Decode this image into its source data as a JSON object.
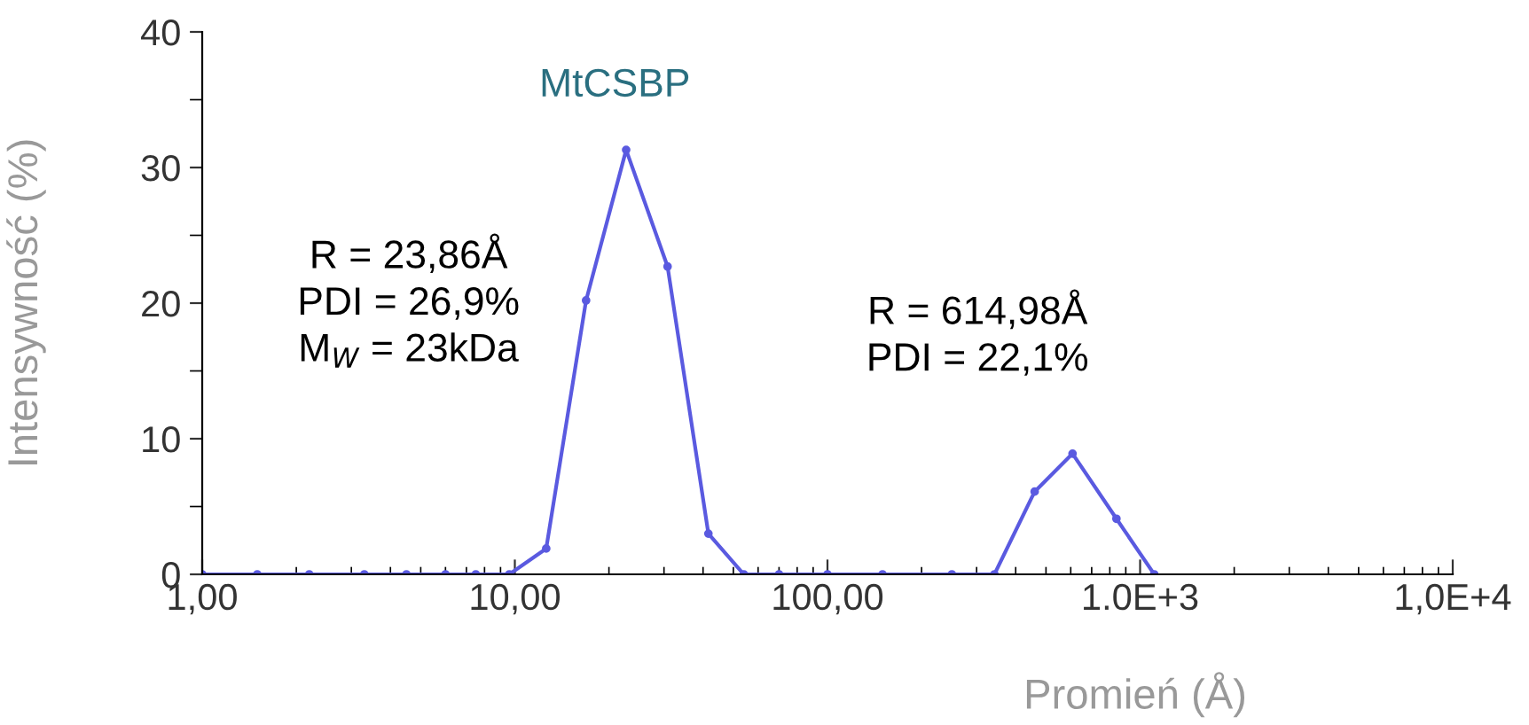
{
  "chart_data": {
    "type": "line",
    "xlabel": "Promień (Å)",
    "ylabel": "Intensywność (%)",
    "annotations": [
      "MtCSBP",
      "R = 23,86Å\nPDI = 26,9%\nM$_{W}$ = 23kDa",
      "R = 614,98Å\nPDI = 22,1%"
    ],
    "series": [
      {
        "color": "#5a5ae0",
        "x": [
          1.0,
          1.5,
          2.2,
          3.3,
          4.5,
          6.0,
          7.5,
          9.6,
          12.6,
          16.9,
          22.7,
          30.8,
          41.6,
          54,
          70,
          100,
          150,
          250,
          342,
          460,
          608,
          840,
          1110
        ],
        "values": [
          0,
          0,
          0,
          0,
          0,
          0,
          0,
          0,
          1.9,
          20.2,
          31.3,
          22.7,
          3.0,
          0,
          0,
          0,
          0,
          0,
          0,
          6.1,
          8.9,
          4.1,
          0
        ]
      }
    ],
    "log": "x",
    "xlim": [
      1,
      10000
    ],
    "xticks": [
      {
        "value": 1,
        "label": "1,00"
      },
      {
        "value": 10,
        "label": "10,00"
      },
      {
        "value": 100,
        "label": "100,00"
      },
      {
        "value": 1000,
        "label": "1.0E+3"
      },
      {
        "value": 10000,
        "label": "1,0E+4"
      }
    ],
    "ylim": [
      0,
      40
    ],
    "yticks": [
      0,
      10,
      20,
      30,
      40
    ],
    "grid": false,
    "legend": false,
    "marker": "circle",
    "line_style": "solid"
  }
}
